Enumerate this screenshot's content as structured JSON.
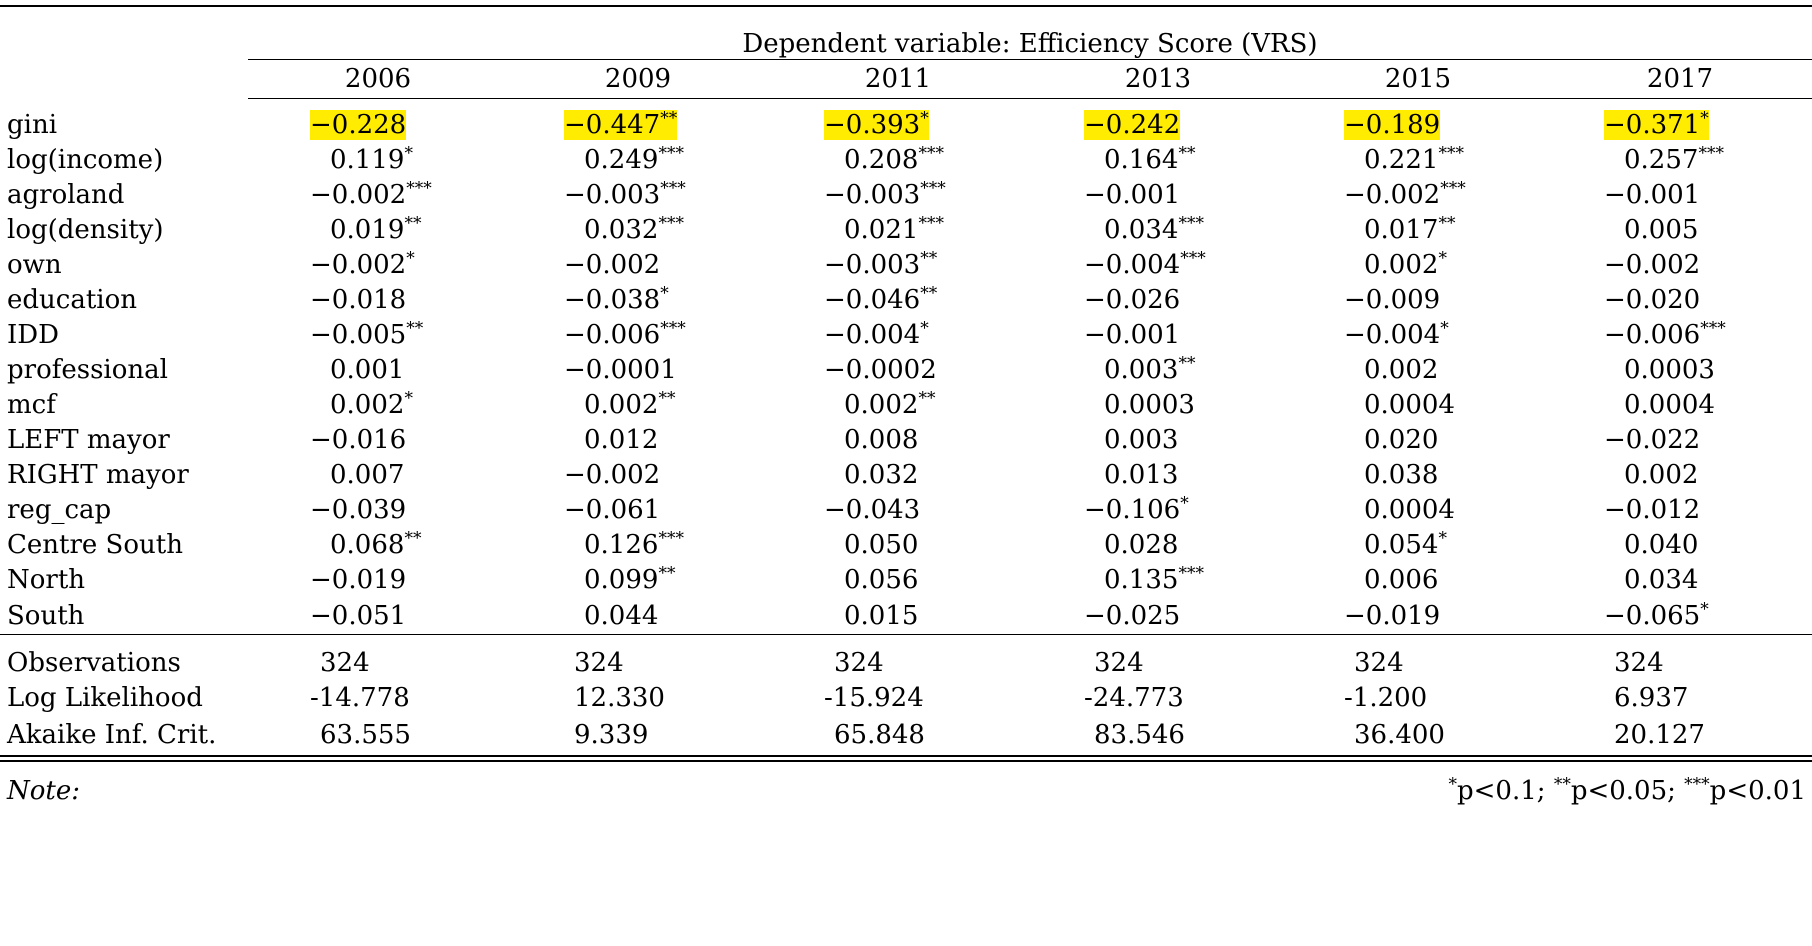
{
  "table": {
    "dependent_variable_label": "Dependent variable: Efficiency Score (VRS)",
    "years": [
      "2006",
      "2009",
      "2011",
      "2013",
      "2015",
      "2017"
    ],
    "rows": [
      {
        "label": "gini",
        "highlight": true,
        "cells": [
          {
            "value": "−0.228",
            "stars": ""
          },
          {
            "value": "−0.447",
            "stars": "**"
          },
          {
            "value": "−0.393",
            "stars": "*"
          },
          {
            "value": "−0.242",
            "stars": ""
          },
          {
            "value": "−0.189",
            "stars": ""
          },
          {
            "value": "−0.371",
            "stars": "*"
          }
        ]
      },
      {
        "label": "log(income)",
        "cells": [
          {
            "value": "0.119",
            "stars": "*"
          },
          {
            "value": "0.249",
            "stars": "***"
          },
          {
            "value": "0.208",
            "stars": "***"
          },
          {
            "value": "0.164",
            "stars": "**"
          },
          {
            "value": "0.221",
            "stars": "***"
          },
          {
            "value": "0.257",
            "stars": "***"
          }
        ]
      },
      {
        "label": "agroland",
        "cells": [
          {
            "value": "−0.002",
            "stars": "***"
          },
          {
            "value": "−0.003",
            "stars": "***"
          },
          {
            "value": "−0.003",
            "stars": "***"
          },
          {
            "value": "−0.001",
            "stars": ""
          },
          {
            "value": "−0.002",
            "stars": "***"
          },
          {
            "value": "−0.001",
            "stars": ""
          }
        ]
      },
      {
        "label": "log(density)",
        "cells": [
          {
            "value": "0.019",
            "stars": "**"
          },
          {
            "value": "0.032",
            "stars": "***"
          },
          {
            "value": "0.021",
            "stars": "***"
          },
          {
            "value": "0.034",
            "stars": "***"
          },
          {
            "value": "0.017",
            "stars": "**"
          },
          {
            "value": "0.005",
            "stars": ""
          }
        ]
      },
      {
        "label": "own",
        "cells": [
          {
            "value": "−0.002",
            "stars": "*"
          },
          {
            "value": "−0.002",
            "stars": ""
          },
          {
            "value": "−0.003",
            "stars": "**"
          },
          {
            "value": "−0.004",
            "stars": "***"
          },
          {
            "value": "0.002",
            "stars": "*"
          },
          {
            "value": "−0.002",
            "stars": ""
          }
        ]
      },
      {
        "label": "education",
        "cells": [
          {
            "value": "−0.018",
            "stars": ""
          },
          {
            "value": "−0.038",
            "stars": "*"
          },
          {
            "value": "−0.046",
            "stars": "**"
          },
          {
            "value": "−0.026",
            "stars": ""
          },
          {
            "value": "−0.009",
            "stars": ""
          },
          {
            "value": "−0.020",
            "stars": ""
          }
        ]
      },
      {
        "label": "IDD",
        "cells": [
          {
            "value": "−0.005",
            "stars": "**"
          },
          {
            "value": "−0.006",
            "stars": "***"
          },
          {
            "value": "−0.004",
            "stars": "*"
          },
          {
            "value": "−0.001",
            "stars": ""
          },
          {
            "value": "−0.004",
            "stars": "*"
          },
          {
            "value": "−0.006",
            "stars": "***"
          }
        ]
      },
      {
        "label": "professional",
        "cells": [
          {
            "value": "0.001",
            "stars": ""
          },
          {
            "value": "−0.0001",
            "stars": ""
          },
          {
            "value": "−0.0002",
            "stars": ""
          },
          {
            "value": "0.003",
            "stars": "**"
          },
          {
            "value": "0.002",
            "stars": ""
          },
          {
            "value": "0.0003",
            "stars": ""
          }
        ]
      },
      {
        "label": "mcf",
        "cells": [
          {
            "value": "0.002",
            "stars": "*"
          },
          {
            "value": "0.002",
            "stars": "**"
          },
          {
            "value": "0.002",
            "stars": "**"
          },
          {
            "value": "0.0003",
            "stars": ""
          },
          {
            "value": "0.0004",
            "stars": ""
          },
          {
            "value": "0.0004",
            "stars": ""
          }
        ]
      },
      {
        "label": "LEFT mayor",
        "cells": [
          {
            "value": "−0.016",
            "stars": ""
          },
          {
            "value": "0.012",
            "stars": ""
          },
          {
            "value": "0.008",
            "stars": ""
          },
          {
            "value": "0.003",
            "stars": ""
          },
          {
            "value": "0.020",
            "stars": ""
          },
          {
            "value": "−0.022",
            "stars": ""
          }
        ]
      },
      {
        "label": "RIGHT mayor",
        "cells": [
          {
            "value": "0.007",
            "stars": ""
          },
          {
            "value": "−0.002",
            "stars": ""
          },
          {
            "value": "0.032",
            "stars": ""
          },
          {
            "value": "0.013",
            "stars": ""
          },
          {
            "value": "0.038",
            "stars": ""
          },
          {
            "value": "0.002",
            "stars": ""
          }
        ]
      },
      {
        "label": "reg_cap",
        "cells": [
          {
            "value": "−0.039",
            "stars": ""
          },
          {
            "value": "−0.061",
            "stars": ""
          },
          {
            "value": "−0.043",
            "stars": ""
          },
          {
            "value": "−0.106",
            "stars": "*"
          },
          {
            "value": "0.0004",
            "stars": ""
          },
          {
            "value": "−0.012",
            "stars": ""
          }
        ]
      },
      {
        "label": "Centre South",
        "cells": [
          {
            "value": "0.068",
            "stars": "**"
          },
          {
            "value": "0.126",
            "stars": "***"
          },
          {
            "value": "0.050",
            "stars": ""
          },
          {
            "value": "0.028",
            "stars": ""
          },
          {
            "value": "0.054",
            "stars": "*"
          },
          {
            "value": "0.040",
            "stars": ""
          }
        ]
      },
      {
        "label": "North",
        "cells": [
          {
            "value": "−0.019",
            "stars": ""
          },
          {
            "value": "0.099",
            "stars": "**"
          },
          {
            "value": "0.056",
            "stars": ""
          },
          {
            "value": "0.135",
            "stars": "***"
          },
          {
            "value": "0.006",
            "stars": ""
          },
          {
            "value": "0.034",
            "stars": ""
          }
        ]
      },
      {
        "label": "South",
        "cells": [
          {
            "value": "−0.051",
            "stars": ""
          },
          {
            "value": "0.044",
            "stars": ""
          },
          {
            "value": "0.015",
            "stars": ""
          },
          {
            "value": "−0.025",
            "stars": ""
          },
          {
            "value": "−0.019",
            "stars": ""
          },
          {
            "value": "−0.065",
            "stars": "*"
          }
        ]
      }
    ],
    "stats": [
      {
        "label": "Observations",
        "values": [
          "324",
          "324",
          "324",
          "324",
          "324",
          "324"
        ]
      },
      {
        "label": "Log Likelihood",
        "values": [
          "-14.778",
          "12.330",
          "-15.924",
          "-24.773",
          "-1.200",
          "6.937"
        ]
      },
      {
        "label": "Akaike Inf. Crit.",
        "values": [
          "63.555",
          "9.339",
          "65.848",
          "83.546",
          "36.400",
          "20.127"
        ]
      }
    ],
    "note_label": "Note:",
    "significance": [
      {
        "stars": "*",
        "text": "p<0.1;"
      },
      {
        "stars": "**",
        "text": "p<0.05;"
      },
      {
        "stars": "***",
        "text": "p<0.01"
      }
    ],
    "highlight_color": "#ffec00"
  }
}
